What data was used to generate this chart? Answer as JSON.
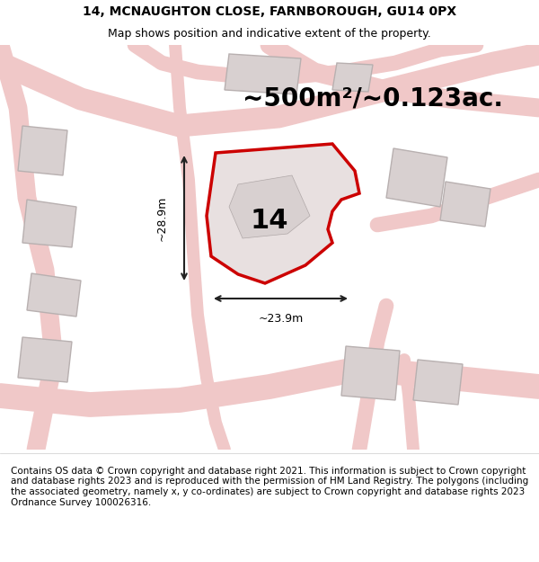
{
  "title_line1": "14, MCNAUGHTON CLOSE, FARNBOROUGH, GU14 0PX",
  "title_line2": "Map shows position and indicative extent of the property.",
  "area_text": "~500m²/~0.123ac.",
  "dim_width": "~23.9m",
  "dim_height": "~28.9m",
  "label_number": "14",
  "footer_text": "Contains OS data © Crown copyright and database right 2021. This information is subject to Crown copyright and database rights 2023 and is reproduced with the permission of HM Land Registry. The polygons (including the associated geometry, namely x, y co-ordinates) are subject to Crown copyright and database rights 2023 Ordnance Survey 100026316.",
  "bg_color": "#f5f0f0",
  "road_color": "#f0c8c8",
  "building_color": "#d8d0d0",
  "highlight_color": "#cc0000",
  "highlight_fill": "#e8e0e0",
  "dim_color": "#222222",
  "title_fontsize": 10,
  "subtitle_fontsize": 9,
  "area_fontsize": 20,
  "label_fontsize": 22,
  "footer_fontsize": 7.5
}
